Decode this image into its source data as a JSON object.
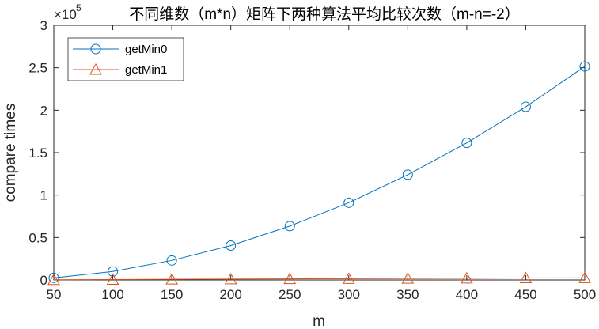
{
  "chart_data": {
    "type": "line",
    "title": "不同维数（m*n）矩阵下两种算法平均比较次数（m-n=-2）",
    "xlabel": "m",
    "ylabel": "compare times",
    "y_exponent_label": "×10",
    "y_exponent": "5",
    "x": [
      50,
      100,
      150,
      200,
      250,
      300,
      350,
      400,
      450,
      500
    ],
    "xlim": [
      50,
      500
    ],
    "ylim": [
      0,
      3
    ],
    "x_ticks": [
      "50",
      "100",
      "150",
      "200",
      "250",
      "300",
      "350",
      "400",
      "450",
      "500"
    ],
    "y_ticks": [
      "0",
      "0.5",
      "1",
      "1.5",
      "2",
      "2.5",
      "3"
    ],
    "grid": false,
    "legend_position": "top-left",
    "series": [
      {
        "name": "getMin0",
        "color": "#0072BD",
        "marker": "circle",
        "values": [
          0.025,
          0.1,
          0.23,
          0.405,
          0.635,
          0.91,
          1.24,
          1.615,
          2.04,
          2.515
        ]
      },
      {
        "name": "getMin1",
        "color": "#D95319",
        "marker": "triangle",
        "values": [
          0.002,
          0.005,
          0.008,
          0.01,
          0.013,
          0.015,
          0.018,
          0.02,
          0.023,
          0.025
        ]
      }
    ]
  }
}
